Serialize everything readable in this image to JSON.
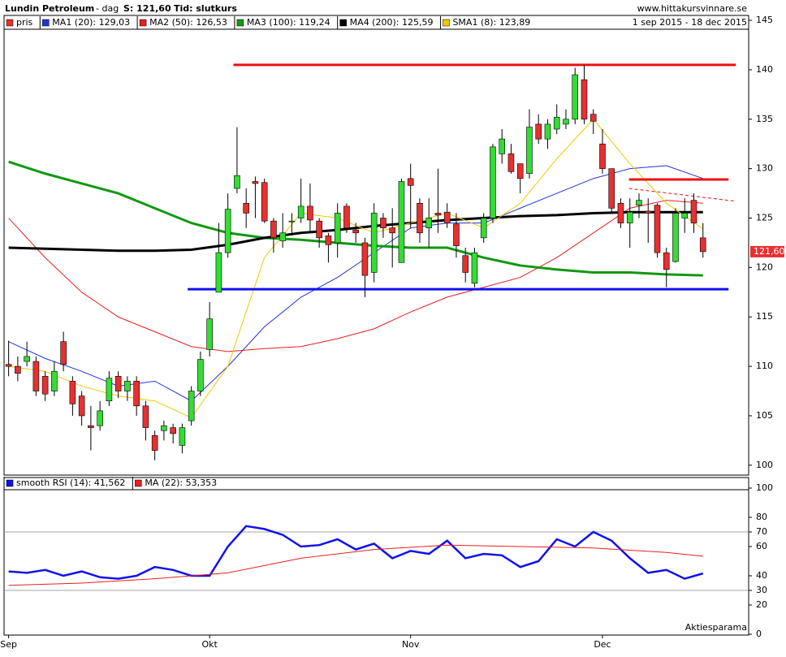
{
  "chart_data": {
    "type": "candlestick",
    "header": {
      "title": "Lundin Petroleum",
      "period": "- dag",
      "last": "S: 121,60",
      "mode": "Tid: slutkurs",
      "site": "www.hittakursvinnare.se",
      "range": "1 sep 2015 - 18 dec 2015"
    },
    "price_label": "121,60",
    "ylim": [
      99,
      145.5
    ],
    "yticks": [
      100,
      105,
      110,
      115,
      120,
      125,
      130,
      135,
      140,
      145
    ],
    "xlim": [
      -0.5,
      81
    ],
    "xticks": [
      {
        "value": 0,
        "label": "Sep"
      },
      {
        "value": 22,
        "label": "Okt"
      },
      {
        "value": 44,
        "label": "Nov"
      },
      {
        "value": 65,
        "label": "Dec"
      }
    ],
    "up_color": "#33dd33",
    "down_color": "#e83030",
    "candle_name": "pris",
    "ohlc": [
      [
        110.2,
        112.6,
        109,
        110
      ],
      [
        110,
        111,
        108.5,
        109.3
      ],
      [
        110.5,
        112.5,
        110,
        111
      ],
      [
        110.5,
        111,
        107,
        107.5
      ],
      [
        109,
        109.5,
        106.5,
        107.2
      ],
      [
        107.5,
        110.5,
        107,
        109.5
      ],
      [
        112.5,
        113.5,
        109.5,
        110.2
      ],
      [
        108.5,
        109,
        105,
        106.2
      ],
      [
        107,
        107.5,
        104,
        105
      ],
      [
        104,
        106,
        101.5,
        103.8
      ],
      [
        104,
        106.5,
        103.5,
        105.5
      ],
      [
        106.5,
        109.5,
        106,
        108.8
      ],
      [
        109,
        109.5,
        106.8,
        107.5
      ],
      [
        107.5,
        109,
        106.5,
        108.5
      ],
      [
        108.5,
        109,
        105,
        106
      ],
      [
        106,
        106.5,
        102.5,
        103.8
      ],
      [
        103,
        103.5,
        100.5,
        101.5
      ],
      [
        103.5,
        104.5,
        102.5,
        104
      ],
      [
        103.8,
        104.2,
        102.2,
        103.2
      ],
      [
        102,
        104.2,
        101.2,
        103.8
      ],
      [
        104.5,
        108,
        104,
        107.5
      ],
      [
        107.5,
        111.5,
        107,
        110.7
      ],
      [
        111.7,
        116.5,
        111,
        114.8
      ],
      [
        117.5,
        124.5,
        117.5,
        121.5
      ],
      [
        121.5,
        127.5,
        121,
        125.9
      ],
      [
        128,
        134.2,
        127.5,
        129.3
      ],
      [
        126.5,
        128,
        124,
        125.5
      ],
      [
        128.7,
        129.2,
        125,
        128.5
      ],
      [
        128.6,
        129,
        124.5,
        124.7
      ],
      [
        124.7,
        125,
        121.5,
        123
      ],
      [
        122.7,
        125.5,
        122,
        123.5
      ],
      [
        124.7,
        125.5,
        123.5,
        124.7
      ],
      [
        125,
        129,
        124.5,
        126.2
      ],
      [
        126.2,
        128.5,
        123.5,
        124.8
      ],
      [
        124.7,
        125,
        122,
        123
      ],
      [
        123.2,
        123.5,
        120.5,
        122.3
      ],
      [
        122.5,
        126.5,
        121,
        125.5
      ],
      [
        126.2,
        126.5,
        123.5,
        124
      ],
      [
        123.8,
        124.5,
        122.5,
        123.5
      ],
      [
        122.5,
        123,
        117,
        119.2
      ],
      [
        119.5,
        126.5,
        118.5,
        125.5
      ],
      [
        125,
        125.5,
        123,
        124
      ],
      [
        124,
        126,
        120,
        123.5
      ],
      [
        120.5,
        129,
        120.5,
        128.7
      ],
      [
        129,
        130.5,
        124,
        128.3
      ],
      [
        126.5,
        127,
        122.5,
        123.5
      ],
      [
        124,
        127,
        122,
        125
      ],
      [
        125.5,
        130,
        123.5,
        125.3
      ],
      [
        125.6,
        126.5,
        124,
        124.5
      ],
      [
        124.4,
        125.5,
        121,
        122.2
      ],
      [
        121.2,
        122,
        118.5,
        119.5
      ],
      [
        118.4,
        122,
        118,
        121.5
      ],
      [
        123,
        125.5,
        122.5,
        125
      ],
      [
        125,
        132.5,
        124.5,
        132.2
      ],
      [
        131.5,
        134,
        130.5,
        133
      ],
      [
        131.5,
        132.5,
        129.5,
        129.7
      ],
      [
        130.5,
        130.5,
        127.5,
        129
      ],
      [
        129.5,
        136,
        129,
        134.2
      ],
      [
        134.5,
        135.5,
        132.5,
        133
      ],
      [
        133,
        135,
        132,
        134.5
      ],
      [
        134,
        136.5,
        133.5,
        135.2
      ],
      [
        134.5,
        136,
        134,
        135
      ],
      [
        135,
        140.2,
        134.5,
        139.5
      ],
      [
        139,
        140.5,
        134.5,
        135
      ],
      [
        135.5,
        136,
        133.5,
        134.8
      ],
      [
        132.5,
        134,
        129.5,
        130
      ],
      [
        130,
        130,
        125.5,
        126
      ],
      [
        126.5,
        127,
        124,
        124.5
      ],
      [
        124.5,
        127,
        122,
        125.6
      ],
      [
        126.3,
        127.5,
        125,
        126.8
      ],
      [
        125.7,
        127,
        122.5,
        125.5
      ],
      [
        126.3,
        126.5,
        121,
        121.5
      ],
      [
        121.5,
        122,
        118,
        119.8
      ],
      [
        120.6,
        126,
        120.5,
        125.5
      ],
      [
        125,
        127,
        123.5,
        125.5
      ],
      [
        126.8,
        127.5,
        123.5,
        124.5
      ],
      [
        123,
        124.5,
        121,
        121.6
      ]
    ],
    "series": [
      {
        "name": "MA1 (20): 129,03",
        "color": "#2233dd",
        "width": 1,
        "x": [
          0,
          4,
          8,
          12,
          16,
          20,
          24,
          28,
          32,
          36,
          40,
          44,
          48,
          52,
          56,
          60,
          64,
          68,
          72,
          76
        ],
        "values": [
          112.5,
          110.8,
          109.5,
          108,
          108.5,
          106.5,
          110,
          114,
          117,
          119,
          121.5,
          124,
          124.5,
          124.5,
          126,
          127.5,
          129,
          130,
          130.3,
          129
        ]
      },
      {
        "name": "MA2 (50): 126,53",
        "color": "#e82020",
        "width": 1,
        "x": [
          0,
          4,
          8,
          12,
          16,
          20,
          24,
          28,
          32,
          36,
          40,
          44,
          48,
          52,
          56,
          60,
          64,
          68,
          72,
          76
        ],
        "values": [
          125,
          121,
          117.5,
          115,
          113.5,
          112,
          111.5,
          111.8,
          112,
          112.8,
          113.8,
          115.5,
          117,
          118,
          119,
          121,
          123.5,
          126,
          126.8,
          126.5
        ]
      },
      {
        "name": "MA3 (100): 119,24",
        "color": "#119911",
        "width": 3,
        "x": [
          0,
          4,
          8,
          12,
          16,
          20,
          24,
          28,
          32,
          36,
          40,
          44,
          48,
          52,
          56,
          60,
          64,
          68,
          72,
          76
        ],
        "values": [
          130.7,
          129.5,
          128.5,
          127.5,
          126,
          124.5,
          123.5,
          123,
          122.8,
          122.5,
          122.2,
          122,
          122,
          121,
          120.2,
          119.8,
          119.5,
          119.5,
          119.3,
          119.2
        ]
      },
      {
        "name": "MA4 (200): 125,59",
        "color": "#000000",
        "width": 3,
        "x": [
          0,
          4,
          8,
          12,
          16,
          20,
          24,
          28,
          32,
          36,
          40,
          44,
          48,
          52,
          56,
          60,
          64,
          68,
          72,
          76
        ],
        "values": [
          122,
          121.9,
          121.8,
          121.7,
          121.7,
          121.8,
          122.3,
          123,
          123.5,
          123.8,
          124.2,
          124.5,
          124.8,
          125,
          125.2,
          125.3,
          125.5,
          125.6,
          125.6,
          125.6
        ]
      },
      {
        "name": "SMA1 (8): 123,89",
        "color": "#f0c800",
        "width": 1,
        "x": [
          0,
          4,
          8,
          12,
          16,
          20,
          24,
          28,
          32,
          36,
          40,
          44,
          48,
          52,
          56,
          60,
          64,
          68,
          72,
          76
        ],
        "values": [
          110,
          109.5,
          108,
          107,
          106.5,
          104.8,
          110,
          121,
          125.5,
          125,
          123.5,
          124.5,
          125.5,
          124,
          126.5,
          131,
          135,
          130.5,
          126.5,
          123.9
        ]
      }
    ],
    "drawn_lines": [
      {
        "color": "#ee1111",
        "width": 3,
        "dashed": false,
        "x": [
          24.6,
          79.6
        ],
        "values": [
          140.5,
          140.5
        ]
      },
      {
        "color": "#1111ee",
        "width": 3,
        "dashed": false,
        "x": [
          19.6,
          78.8
        ],
        "values": [
          117.8,
          117.8
        ]
      },
      {
        "color": "#ee1111",
        "width": 3,
        "dashed": false,
        "x": [
          67.9,
          78.8
        ],
        "values": [
          128.9,
          128.9
        ]
      },
      {
        "color": "#ee1111",
        "width": 1,
        "dashed": true,
        "x": [
          67.9,
          79.6
        ],
        "values": [
          128,
          126.7
        ]
      }
    ],
    "rsi": {
      "ylim": [
        0,
        100
      ],
      "yticks": [
        0,
        20,
        30,
        40,
        60,
        70,
        80,
        100
      ],
      "hlines": [
        30,
        70
      ],
      "note": "Aktiesparama",
      "series": [
        {
          "name": "smooth RSI (14): 41,562",
          "color": "#1111ee",
          "width": 2.5,
          "x": [
            0,
            2,
            4,
            6,
            8,
            10,
            12,
            14,
            16,
            18,
            20,
            22,
            24,
            26,
            28,
            30,
            32,
            34,
            36,
            38,
            40,
            42,
            44,
            46,
            48,
            50,
            52,
            54,
            56,
            58,
            60,
            62,
            64,
            66,
            68,
            70,
            72,
            74,
            76
          ],
          "values": [
            43,
            42,
            44,
            40,
            43,
            39,
            38,
            40,
            46,
            44,
            40,
            40,
            60,
            74,
            72,
            68,
            60,
            61,
            65,
            58,
            62,
            52,
            57,
            55,
            64,
            52,
            55,
            54,
            46,
            50,
            65,
            60,
            70,
            64,
            52,
            42,
            44,
            38,
            41.6
          ]
        },
        {
          "name": "MA (22): 53,353",
          "color": "#e82020",
          "width": 1,
          "x": [
            0,
            8,
            16,
            24,
            32,
            40,
            48,
            56,
            64,
            72,
            76
          ],
          "values": [
            33.5,
            35,
            38,
            42,
            52,
            58,
            61,
            60,
            59,
            56,
            53.4
          ]
        }
      ]
    }
  }
}
